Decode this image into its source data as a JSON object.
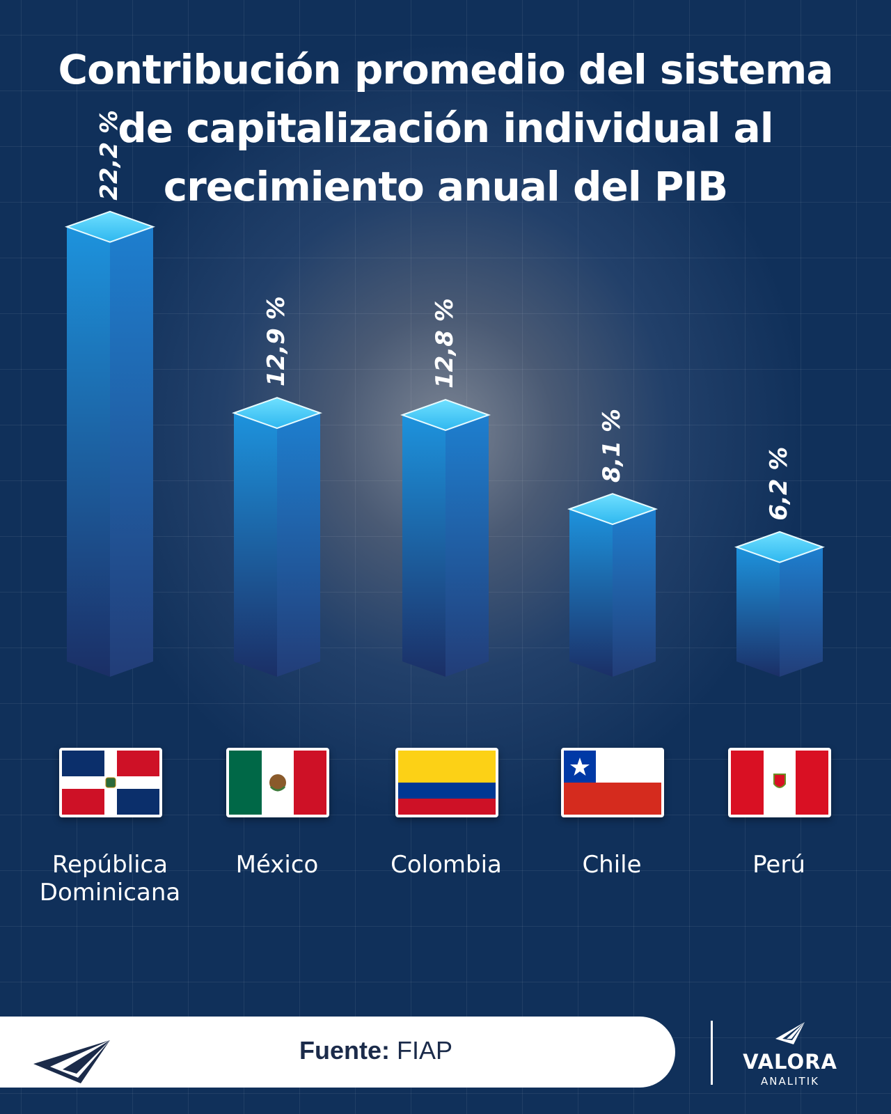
{
  "title": "Contribución promedio del sistema de capitalización individual al crecimiento anual del PIB",
  "chart_data": {
    "type": "bar",
    "title": "Contribución promedio del sistema de capitalización individual al crecimiento anual del PIB",
    "categories": [
      "República Dominicana",
      "México",
      "Colombia",
      "Chile",
      "Perú"
    ],
    "values": [
      22.2,
      12.9,
      12.8,
      8.1,
      6.2
    ],
    "value_labels": [
      "22,2 %",
      "12,9 %",
      "12,8 %",
      "8,1 %",
      "6,2 %"
    ],
    "ylim": [
      0,
      24
    ],
    "grid": false,
    "colors": {
      "bar_top": "#37c6f4",
      "bar_left": "#1a7ec8",
      "bar_right": "#1f6fb8",
      "bar_bottom": "#1b3670"
    }
  },
  "flags": [
    "dominican-republic-flag-icon",
    "mexico-flag-icon",
    "colombia-flag-icon",
    "chile-flag-icon",
    "peru-flag-icon"
  ],
  "footer": {
    "source_label": "Fuente:",
    "source_value": "FIAP"
  },
  "brand": {
    "name": "VALORA",
    "sub": "ANALITIK",
    "logo_icon": "valora-logo-icon"
  }
}
